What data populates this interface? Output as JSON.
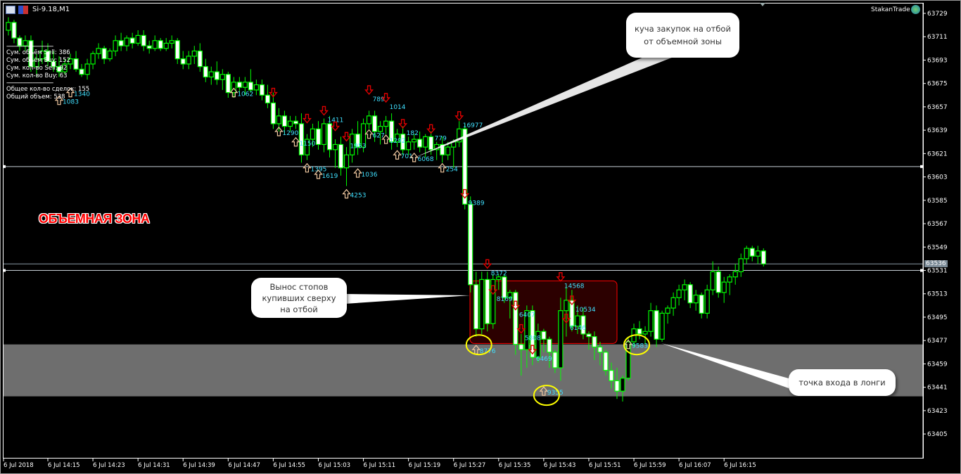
{
  "window": {
    "symbol_title": "Si-9.18,M1",
    "brand": "StakanTrade",
    "current_price": "63536"
  },
  "stats": {
    "separator": "--------------------------------",
    "lines": [
      "Сум. объём Sell: 386",
      "Сум. объём Buy: 152",
      "Сум. кол-во Sell: 92",
      "Сум. кол-во Buy: 63"
    ],
    "total_lines": [
      "Общее кол-во сделок: 155",
      "Общий объем: 538"
    ]
  },
  "annotations": {
    "zone_label": "ОБЪЕМНАЯ ЗОНА",
    "callout_top": [
      "куча закупок на отбой",
      "от объемной зоны"
    ],
    "callout_left": [
      "Вынос стопов",
      "купивших сверху",
      "на отбой"
    ],
    "callout_right": "точка входа в лонги"
  },
  "colors": {
    "candle": "#00ff00",
    "bear_fill": "#ffffff",
    "bull_fill": "#000000",
    "hline": "#00bfff",
    "zone": "#6e6e6e",
    "box": "#ff0000",
    "circle": "#ffff00",
    "buy_arrow": "#ffffff",
    "sell_arrow": "#cc0000",
    "vol_text": "#40e0ff"
  },
  "chart_data": {
    "type": "candlestick",
    "timeframe": "M1",
    "ylim": [
      63396,
      63735
    ],
    "y_ticks": [
      63729,
      63711,
      63693,
      63675,
      63657,
      63639,
      63621,
      63603,
      63585,
      63567,
      63549,
      63531,
      63513,
      63495,
      63477,
      63459,
      63441,
      63423,
      63405
    ],
    "x_ticks": [
      {
        "time": "14:07",
        "label": "6 Jul 2018"
      },
      {
        "time": "14:15",
        "label": "6 Jul 14:15"
      },
      {
        "time": "14:23",
        "label": "6 Jul 14:23"
      },
      {
        "time": "14:31",
        "label": "6 Jul 14:31"
      },
      {
        "time": "14:39",
        "label": "6 Jul 14:39"
      },
      {
        "time": "14:47",
        "label": "6 Jul 14:47"
      },
      {
        "time": "14:55",
        "label": "6 Jul 14:55"
      },
      {
        "time": "15:03",
        "label": "6 Jul 15:03"
      },
      {
        "time": "15:11",
        "label": "6 Jul 15:11"
      },
      {
        "time": "15:19",
        "label": "6 Jul 15:19"
      },
      {
        "time": "15:27",
        "label": "6 Jul 15:27"
      },
      {
        "time": "15:35",
        "label": "6 Jul 15:35"
      },
      {
        "time": "15:43",
        "label": "6 Jul 15:43"
      },
      {
        "time": "15:51",
        "label": "6 Jul 15:51"
      },
      {
        "time": "15:59",
        "label": "6 Jul 15:59"
      },
      {
        "time": "16:07",
        "label": "6 Jul 16:07"
      },
      {
        "time": "16:15",
        "label": "6 Jul 16:15"
      }
    ],
    "ohlc_fields": [
      "time",
      "open",
      "high",
      "low",
      "close"
    ],
    "candles": [
      [
        "14:08",
        63716,
        63726,
        63712,
        63722
      ],
      [
        "14:09",
        63722,
        63724,
        63706,
        63710
      ],
      [
        "14:10",
        63710,
        63712,
        63700,
        63704
      ],
      [
        "14:11",
        63704,
        63712,
        63700,
        63708
      ],
      [
        "14:12",
        63708,
        63712,
        63684,
        63688
      ],
      [
        "14:13",
        63688,
        63698,
        63680,
        63694
      ],
      [
        "14:14",
        63694,
        63708,
        63690,
        63700
      ],
      [
        "14:15",
        63700,
        63706,
        63688,
        63692
      ],
      [
        "14:16",
        63692,
        63700,
        63684,
        63688
      ],
      [
        "14:17",
        63688,
        63696,
        63680,
        63684
      ],
      [
        "14:18",
        63684,
        63694,
        63682,
        63690
      ],
      [
        "14:19",
        63690,
        63698,
        63686,
        63694
      ],
      [
        "14:20",
        63694,
        63700,
        63684,
        63686
      ],
      [
        "14:21",
        63686,
        63690,
        63680,
        63682
      ],
      [
        "14:22",
        63682,
        63694,
        63678,
        63690
      ],
      [
        "14:23",
        63690,
        63700,
        63686,
        63698
      ],
      [
        "14:24",
        63698,
        63706,
        63694,
        63702
      ],
      [
        "14:25",
        63702,
        63704,
        63690,
        63694
      ],
      [
        "14:26",
        63694,
        63702,
        63692,
        63700
      ],
      [
        "14:27",
        63700,
        63712,
        63696,
        63708
      ],
      [
        "14:28",
        63708,
        63714,
        63700,
        63704
      ],
      [
        "14:29",
        63704,
        63712,
        63700,
        63710
      ],
      [
        "14:30",
        63710,
        63714,
        63702,
        63706
      ],
      [
        "14:31",
        63706,
        63716,
        63704,
        63712
      ],
      [
        "14:32",
        63712,
        63716,
        63700,
        63704
      ],
      [
        "14:33",
        63704,
        63708,
        63698,
        63702
      ],
      [
        "14:34",
        63702,
        63712,
        63700,
        63708
      ],
      [
        "14:35",
        63708,
        63710,
        63700,
        63702
      ],
      [
        "14:36",
        63702,
        63710,
        63700,
        63706
      ],
      [
        "14:37",
        63706,
        63712,
        63702,
        63708
      ],
      [
        "14:38",
        63708,
        63710,
        63690,
        63694
      ],
      [
        "14:39",
        63694,
        63700,
        63686,
        63690
      ],
      [
        "14:40",
        63690,
        63700,
        63686,
        63696
      ],
      [
        "14:41",
        63696,
        63704,
        63690,
        63700
      ],
      [
        "14:42",
        63700,
        63706,
        63684,
        63688
      ],
      [
        "14:43",
        63688,
        63694,
        63676,
        63680
      ],
      [
        "14:44",
        63680,
        63688,
        63674,
        63684
      ],
      [
        "14:45",
        63684,
        63692,
        63674,
        63678
      ],
      [
        "14:46",
        63678,
        63686,
        63670,
        63682
      ],
      [
        "14:47",
        63682,
        63684,
        63664,
        63668
      ],
      [
        "14:48",
        63668,
        63680,
        63664,
        63676
      ],
      [
        "14:49",
        63676,
        63680,
        63668,
        63672
      ],
      [
        "14:50",
        63672,
        63680,
        63666,
        63676
      ],
      [
        "14:51",
        63676,
        63686,
        63668,
        63670
      ],
      [
        "14:52",
        63670,
        63678,
        63666,
        63674
      ],
      [
        "14:53",
        63674,
        63678,
        63662,
        63666
      ],
      [
        "14:54",
        63666,
        63674,
        63656,
        63660
      ],
      [
        "14:55",
        63660,
        63668,
        63640,
        63644
      ],
      [
        "14:56",
        63644,
        63656,
        63638,
        63650
      ],
      [
        "14:57",
        63650,
        63654,
        63636,
        63642
      ],
      [
        "14:58",
        63642,
        63650,
        63638,
        63646
      ],
      [
        "14:59",
        63646,
        63650,
        63640,
        63644
      ],
      [
        "15:00",
        63644,
        63652,
        63614,
        63620
      ],
      [
        "15:01",
        63620,
        63636,
        63616,
        63632
      ],
      [
        "15:02",
        63632,
        63644,
        63626,
        63640
      ],
      [
        "15:03",
        63640,
        63646,
        63624,
        63628
      ],
      [
        "15:04",
        63628,
        63648,
        63622,
        63644
      ],
      [
        "15:05",
        63644,
        63650,
        63618,
        63624
      ],
      [
        "15:06",
        63624,
        63632,
        63610,
        63628
      ],
      [
        "15:07",
        63628,
        63634,
        63604,
        63610
      ],
      [
        "15:08",
        63610,
        63626,
        63596,
        63620
      ],
      [
        "15:09",
        63620,
        63640,
        63614,
        63636
      ],
      [
        "15:10",
        63636,
        63646,
        63620,
        63626
      ],
      [
        "15:11",
        63626,
        63648,
        63622,
        63644
      ],
      [
        "15:12",
        63644,
        63654,
        63640,
        63650
      ],
      [
        "15:13",
        63650,
        63654,
        63630,
        63638
      ],
      [
        "15:14",
        63638,
        63646,
        63628,
        63642
      ],
      [
        "15:15",
        63642,
        63650,
        63636,
        63646
      ],
      [
        "15:16",
        63646,
        63652,
        63624,
        63630
      ],
      [
        "15:17",
        63630,
        63640,
        63626,
        63636
      ],
      [
        "15:18",
        63636,
        63642,
        63620,
        63624
      ],
      [
        "15:19",
        63624,
        63634,
        63620,
        63630
      ],
      [
        "15:20",
        63630,
        63636,
        63624,
        63632
      ],
      [
        "15:21",
        63632,
        63638,
        63622,
        63626
      ],
      [
        "15:22",
        63626,
        63636,
        63618,
        63634
      ],
      [
        "15:23",
        63634,
        63638,
        63620,
        63624
      ],
      [
        "15:24",
        63624,
        63630,
        63616,
        63628
      ],
      [
        "15:25",
        63628,
        63634,
        63614,
        63620
      ],
      [
        "15:26",
        63620,
        63630,
        63616,
        63626
      ],
      [
        "15:27",
        63626,
        63632,
        63610,
        63630
      ],
      [
        "15:28",
        63630,
        63646,
        63626,
        63640
      ],
      [
        "15:29",
        63640,
        63644,
        63578,
        63582
      ],
      [
        "15:30",
        63582,
        63588,
        63514,
        63520
      ],
      [
        "15:31",
        63520,
        63530,
        63480,
        63486
      ],
      [
        "15:32",
        63486,
        63530,
        63482,
        63524
      ],
      [
        "15:33",
        63524,
        63530,
        63484,
        63490
      ],
      [
        "15:34",
        63490,
        63528,
        63486,
        63524
      ],
      [
        "15:35",
        63524,
        63528,
        63516,
        63526
      ],
      [
        "15:36",
        63526,
        63528,
        63506,
        63510
      ],
      [
        "15:37",
        63510,
        63516,
        63494,
        63514
      ],
      [
        "15:38",
        63514,
        63516,
        63466,
        63474
      ],
      [
        "15:39",
        63474,
        63482,
        63450,
        63470
      ],
      [
        "15:40",
        63470,
        63504,
        63456,
        63500
      ],
      [
        "15:41",
        63500,
        63504,
        63458,
        63464
      ],
      [
        "15:42",
        63464,
        63490,
        63460,
        63484
      ],
      [
        "15:43",
        63484,
        63486,
        63468,
        63478
      ],
      [
        "15:44",
        63478,
        63480,
        63456,
        63468
      ],
      [
        "15:45",
        63468,
        63470,
        63452,
        63456
      ],
      [
        "15:46",
        63456,
        63510,
        63446,
        63500
      ],
      [
        "15:47",
        63500,
        63520,
        63480,
        63508
      ],
      [
        "15:48",
        63508,
        63516,
        63484,
        63488
      ],
      [
        "15:49",
        63488,
        63504,
        63482,
        63496
      ],
      [
        "15:50",
        63496,
        63502,
        63478,
        63482
      ],
      [
        "15:51",
        63482,
        63484,
        63470,
        63480
      ],
      [
        "15:52",
        63480,
        63484,
        63462,
        63472
      ],
      [
        "15:53",
        63472,
        63476,
        63458,
        63468
      ],
      [
        "15:54",
        63468,
        63470,
        63450,
        63454
      ],
      [
        "15:55",
        63454,
        63460,
        63440,
        63446
      ],
      [
        "15:56",
        63446,
        63456,
        63432,
        63438
      ],
      [
        "15:57",
        63438,
        63450,
        63430,
        63448
      ],
      [
        "15:58",
        63448,
        63480,
        63446,
        63476
      ],
      [
        "15:59",
        63476,
        63490,
        63472,
        63486
      ],
      [
        "16:00",
        63486,
        63492,
        63478,
        63482
      ],
      [
        "16:01",
        63482,
        63488,
        63474,
        63484
      ],
      [
        "16:02",
        63484,
        63506,
        63480,
        63500
      ],
      [
        "16:03",
        63500,
        63504,
        63472,
        63478
      ],
      [
        "16:04",
        63478,
        63500,
        63476,
        63498
      ],
      [
        "16:05",
        63498,
        63504,
        63490,
        63502
      ],
      [
        "16:06",
        63502,
        63514,
        63496,
        63510
      ],
      [
        "16:07",
        63510,
        63520,
        63504,
        63516
      ],
      [
        "16:08",
        63516,
        63524,
        63508,
        63520
      ],
      [
        "16:09",
        63520,
        63522,
        63502,
        63506
      ],
      [
        "16:10",
        63506,
        63516,
        63500,
        63512
      ],
      [
        "16:11",
        63512,
        63514,
        63494,
        63498
      ],
      [
        "16:12",
        63498,
        63520,
        63494,
        63516
      ],
      [
        "16:13",
        63516,
        63538,
        63512,
        63530
      ],
      [
        "16:14",
        63530,
        63534,
        63510,
        63514
      ],
      [
        "16:15",
        63514,
        63526,
        63506,
        63522
      ],
      [
        "16:16",
        63522,
        63528,
        63512,
        63526
      ],
      [
        "16:17",
        63526,
        63536,
        63520,
        63530
      ],
      [
        "16:18",
        63530,
        63544,
        63526,
        63540
      ],
      [
        "16:19",
        63540,
        63550,
        63536,
        63548
      ],
      [
        "16:20",
        63548,
        63550,
        63538,
        63542
      ],
      [
        "16:21",
        63542,
        63550,
        63536,
        63546
      ],
      [
        "16:22",
        63546,
        63548,
        63534,
        63536
      ]
    ],
    "horizontal_lines": [
      63611,
      63531,
      63536
    ],
    "volume_zone": [
      63434,
      63474
    ],
    "highlight_box": {
      "from": "15:30",
      "to": "15:55",
      "price_range": [
        63480,
        63530
      ]
    },
    "circles": [
      {
        "time": "15:31",
        "price": 63477
      },
      {
        "time": "15:43",
        "price": 63438
      },
      {
        "time": "15:59",
        "price": 63477
      }
    ],
    "trade_markers": [
      {
        "side": "buy",
        "time": "14:17",
        "price": 63662,
        "label": "1083"
      },
      {
        "side": "buy",
        "time": "14:19",
        "price": 63668,
        "label": "1340"
      },
      {
        "side": "buy",
        "time": "14:48",
        "price": 63668,
        "label": "1062"
      },
      {
        "side": "sell",
        "time": "14:55",
        "price": 63668,
        "label": ""
      },
      {
        "side": "buy",
        "time": "14:56",
        "price": 63638,
        "label": "1290"
      },
      {
        "side": "buy",
        "time": "14:59",
        "price": 63630,
        "label": "1150"
      },
      {
        "side": "buy",
        "time": "15:01",
        "price": 63610,
        "label": "1395"
      },
      {
        "side": "sell",
        "time": "15:01",
        "price": 63648,
        "label": ""
      },
      {
        "side": "sell",
        "time": "15:04",
        "price": 63654,
        "label": "1411"
      },
      {
        "side": "buy",
        "time": "15:03",
        "price": 63605,
        "label": "1619"
      },
      {
        "side": "sell",
        "time": "15:06",
        "price": 63642,
        "label": ""
      },
      {
        "side": "sell",
        "time": "15:08",
        "price": 63634,
        "label": "1953"
      },
      {
        "side": "buy",
        "time": "15:08",
        "price": 63590,
        "label": "4253"
      },
      {
        "side": "buy",
        "time": "15:10",
        "price": 63606,
        "label": "1036"
      },
      {
        "side": "sell",
        "time": "15:12",
        "price": 63670,
        "label": "789"
      },
      {
        "side": "buy",
        "time": "15:12",
        "price": 63636,
        "label": "627"
      },
      {
        "side": "buy",
        "time": "15:15",
        "price": 63632,
        "label": "1292"
      },
      {
        "side": "sell",
        "time": "15:15",
        "price": 63664,
        "label": "1014"
      },
      {
        "side": "buy",
        "time": "15:17",
        "price": 63620,
        "label": "701"
      },
      {
        "side": "sell",
        "time": "15:18",
        "price": 63644,
        "label": "182"
      },
      {
        "side": "buy",
        "time": "15:20",
        "price": 63618,
        "label": "6068"
      },
      {
        "side": "sell",
        "time": "15:23",
        "price": 63640,
        "label": "779"
      },
      {
        "side": "buy",
        "time": "15:25",
        "price": 63610,
        "label": "254"
      },
      {
        "side": "sell",
        "time": "15:28",
        "price": 63650,
        "label": "16977"
      },
      {
        "side": "sell",
        "time": "15:29",
        "price": 63590,
        "label": "9389"
      },
      {
        "side": "sell",
        "time": "15:33",
        "price": 63536,
        "label": "8372"
      },
      {
        "side": "sell",
        "time": "15:34",
        "price": 63516,
        "label": "8169"
      },
      {
        "side": "buy",
        "time": "15:31",
        "price": 63470,
        "label": "8776"
      },
      {
        "side": "sell",
        "time": "15:38",
        "price": 63504,
        "label": "6407"
      },
      {
        "side": "sell",
        "time": "15:39",
        "price": 63486,
        "label": "5808"
      },
      {
        "side": "sell",
        "time": "15:46",
        "price": 63526,
        "label": "14568"
      },
      {
        "side": "sell",
        "time": "15:48",
        "price": 63508,
        "label": "10534"
      },
      {
        "side": "sell",
        "time": "15:47",
        "price": 63494,
        "label": "6146"
      },
      {
        "side": "buy",
        "time": "15:43",
        "price": 63438,
        "label": "9355"
      },
      {
        "side": "sell",
        "time": "15:41",
        "price": 63470,
        "label": "6469"
      },
      {
        "side": "buy",
        "time": "15:58",
        "price": 63474,
        "label": "9583"
      }
    ]
  }
}
